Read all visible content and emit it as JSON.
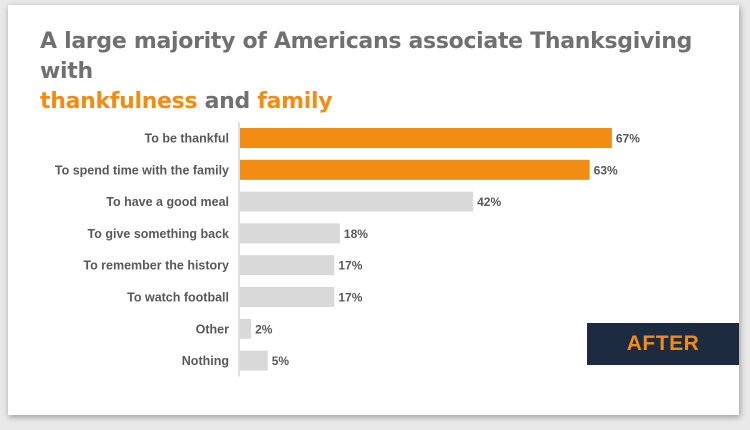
{
  "title": {
    "line1": "A large majority of Americans associate Thanksgiving with",
    "highlight1": "thankfulness",
    "connector": "and",
    "highlight2": "family"
  },
  "badge_label": "AFTER",
  "colors": {
    "highlight": "#f28c13",
    "muted_bar": "#d9d9d9",
    "text": "#595959",
    "title": "#707070",
    "badge_bg": "#1c2b3f"
  },
  "chart_data": {
    "type": "bar",
    "orientation": "horizontal",
    "title": "A large majority of Americans associate Thanksgiving with thankfulness and family",
    "xlabel": "",
    "ylabel": "",
    "grid": false,
    "legend": "none",
    "xlim": [
      0,
      80
    ],
    "categories": [
      "To be thankful",
      "To spend time with the family",
      "To have a good meal",
      "To give something back",
      "To remember the history",
      "To watch football",
      "Other",
      "Nothing"
    ],
    "values": [
      67,
      63,
      42,
      18,
      17,
      17,
      2,
      5
    ],
    "value_labels": [
      "67%",
      "63%",
      "42%",
      "18%",
      "17%",
      "17%",
      "2%",
      "5%"
    ],
    "highlighted": [
      true,
      true,
      false,
      false,
      false,
      false,
      false,
      false
    ]
  }
}
